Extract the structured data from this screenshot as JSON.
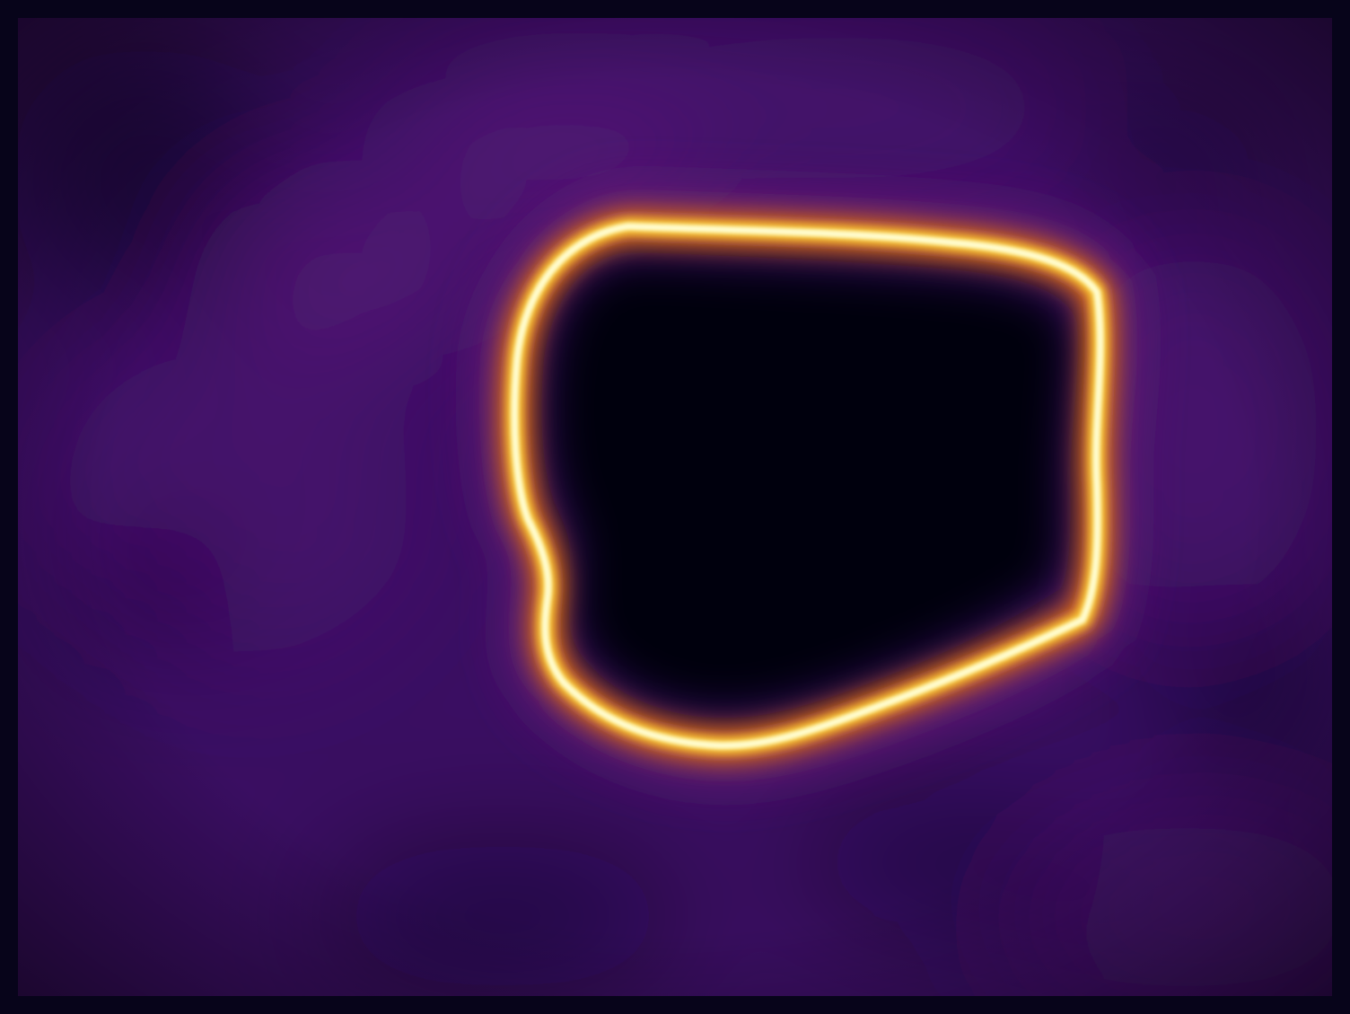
{
  "image": {
    "kind": "heatmap-visualization",
    "colormap": "inferno",
    "colors": {
      "background_dark": "#07041a",
      "field_purple": "#3a0e62",
      "field_purple_bright": "#5a1a7a",
      "cavity_black": "#04020f",
      "ring_outer_orange": "#f07a10",
      "ring_mid_yellow": "#fcd23a",
      "ring_core_white": "#fffdd0"
    },
    "features": [
      "dark-border-frame",
      "purple-background-field",
      "dark-cavity-region",
      "glowing-boundary-ring"
    ]
  }
}
